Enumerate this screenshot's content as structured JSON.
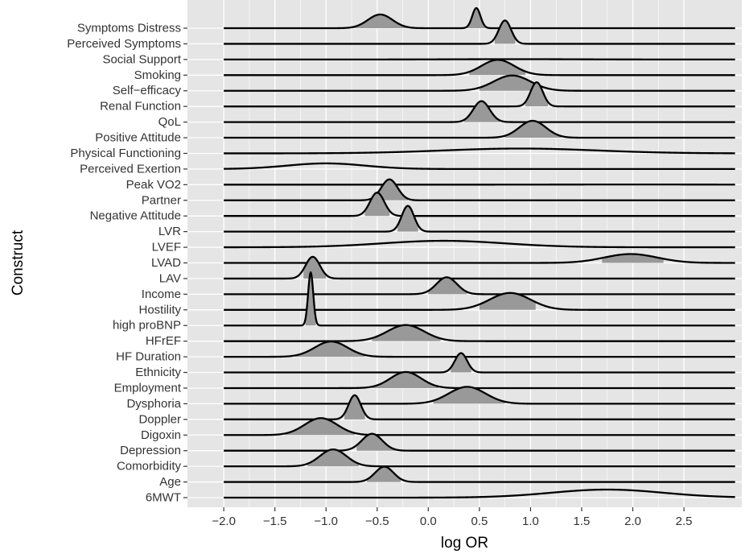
{
  "chart_data": {
    "type": "ridgeline",
    "xlabel": "log OR",
    "ylabel": "Construct",
    "xlim": [
      -2.3,
      3.05
    ],
    "x_ticks": [
      -2.0,
      -1.5,
      -1.0,
      -0.5,
      0.0,
      0.5,
      1.0,
      1.5,
      2.0,
      2.5
    ],
    "x_tick_labels": [
      "−2.0",
      "−1.5",
      "−1.0",
      "−0.5",
      "0.0",
      "0.5",
      "1.0",
      "1.5",
      "2.0",
      "2.5"
    ],
    "x_range": [
      -2.0,
      3.0
    ],
    "grid": true,
    "colors": {
      "panel": "#e5e5e5",
      "grid": "#ffffff",
      "fill": "#999999",
      "line": "#000000"
    },
    "categories": [
      "6MWT",
      "Age",
      "Comorbidity",
      "Depression",
      "Digoxin",
      "Doppler",
      "Dysphoria",
      "Employment",
      "Ethnicity",
      "HF Duration",
      "HFrEF",
      "high proBNP",
      "Hostility",
      "Income",
      "LAV",
      "LVAD",
      "LVEF",
      "LVR",
      "Negative Attitude",
      "Partner",
      "Peak VO2",
      "Perceived Exertion",
      "Physical Functioning",
      "Positive Attitude",
      "QoL",
      "Renal Function",
      "Self−efficacy",
      "Smoking",
      "Social Support",
      "Perceived Symptoms",
      "Symptoms Distress"
    ],
    "series": [
      {
        "name": "6MWT",
        "peaks": [
          {
            "mean": 1.75,
            "sd": 0.55,
            "height": 0.5,
            "fill_range": [
              1.75,
              1.75
            ]
          }
        ]
      },
      {
        "name": "Age",
        "peaks": [
          {
            "mean": -0.43,
            "sd": 0.09,
            "height": 0.95,
            "fill_range": [
              -0.6,
              -0.27
            ]
          }
        ]
      },
      {
        "name": "Comorbidity",
        "peaks": [
          {
            "mean": -0.93,
            "sd": 0.13,
            "height": 1.05,
            "fill_range": [
              -1.18,
              -0.68
            ]
          }
        ]
      },
      {
        "name": "Depression",
        "peaks": [
          {
            "mean": -0.55,
            "sd": 0.1,
            "height": 1.05,
            "fill_range": [
              -0.7,
              -0.3
            ]
          }
        ]
      },
      {
        "name": "Digoxin",
        "peaks": [
          {
            "mean": -1.05,
            "sd": 0.16,
            "height": 1.05,
            "fill_range": [
              -1.4,
              -0.72
            ]
          }
        ]
      },
      {
        "name": "Doppler",
        "peaks": [
          {
            "mean": -0.72,
            "sd": 0.06,
            "height": 1.5,
            "fill_range": [
              -0.82,
              -0.62
            ]
          }
        ]
      },
      {
        "name": "Dysphoria",
        "peaks": [
          {
            "mean": 0.38,
            "sd": 0.18,
            "height": 1.05,
            "fill_range": [
              0.05,
              0.75
            ]
          }
        ]
      },
      {
        "name": "Employment",
        "peaks": [
          {
            "mean": -0.22,
            "sd": 0.15,
            "height": 1.0,
            "fill_range": [
              -0.55,
              0.1
            ]
          }
        ]
      },
      {
        "name": "Ethnicity",
        "peaks": [
          {
            "mean": 0.32,
            "sd": 0.06,
            "height": 1.2,
            "fill_range": [
              0.22,
              0.42
            ]
          }
        ]
      },
      {
        "name": "HF Duration",
        "peaks": [
          {
            "mean": -0.95,
            "sd": 0.16,
            "height": 0.95,
            "fill_range": [
              -1.3,
              -0.62
            ]
          }
        ]
      },
      {
        "name": "HFrEF",
        "peaks": [
          {
            "mean": -0.22,
            "sd": 0.18,
            "height": 1.0,
            "fill_range": [
              -0.55,
              0.12
            ]
          }
        ]
      },
      {
        "name": "high proBNP",
        "peaks": [
          {
            "mean": -1.15,
            "sd": 0.025,
            "height": 3.3,
            "fill_range": [
              -1.2,
              -1.1
            ]
          }
        ]
      },
      {
        "name": "Hostility",
        "peaks": [
          {
            "mean": 0.8,
            "sd": 0.2,
            "height": 1.05,
            "fill_range": [
              0.5,
              1.05
            ]
          }
        ]
      },
      {
        "name": "Income",
        "peaks": [
          {
            "mean": 0.18,
            "sd": 0.1,
            "height": 1.05,
            "fill_range": [
              0.0,
              0.38
            ]
          }
        ]
      },
      {
        "name": "LAV",
        "peaks": [
          {
            "mean": -1.13,
            "sd": 0.07,
            "height": 1.35,
            "fill_range": [
              -1.22,
              -1.0
            ]
          }
        ]
      },
      {
        "name": "LVAD",
        "peaks": [
          {
            "mean": 1.98,
            "sd": 0.26,
            "height": 0.55,
            "fill_range": [
              1.7,
              2.3
            ]
          }
        ]
      },
      {
        "name": "LVEF",
        "peaks": [
          {
            "mean": 0.15,
            "sd": 0.6,
            "height": 0.4,
            "fill_range": [
              0.15,
              0.15
            ]
          }
        ]
      },
      {
        "name": "LVR",
        "peaks": [
          {
            "mean": -0.2,
            "sd": 0.06,
            "height": 1.6,
            "fill_range": [
              -0.3,
              -0.1
            ]
          }
        ]
      },
      {
        "name": "Negative Attitude",
        "peaks": [
          {
            "mean": -0.5,
            "sd": 0.07,
            "height": 1.45,
            "fill_range": [
              -0.62,
              -0.38
            ]
          }
        ]
      },
      {
        "name": "Partner",
        "peaks": [
          {
            "mean": -0.38,
            "sd": 0.08,
            "height": 1.3,
            "fill_range": [
              -0.5,
              -0.2
            ]
          }
        ]
      },
      {
        "name": "Peak VO2",
        "peaks": [
          {
            "mean": 2.0,
            "sd": 0.8,
            "height": 0.01,
            "fill_range": [
              2.0,
              2.0
            ]
          }
        ]
      },
      {
        "name": "Perceived Exertion",
        "peaks": [
          {
            "mean": -1.0,
            "sd": 0.38,
            "height": 0.35,
            "fill_range": [
              -1.0,
              -1.0
            ]
          }
        ]
      },
      {
        "name": "Physical Functioning",
        "peaks": [
          {
            "mean": 0.9,
            "sd": 0.75,
            "height": 0.3,
            "fill_range": [
              0.9,
              0.9
            ]
          }
        ]
      },
      {
        "name": "Positive Attitude",
        "peaks": [
          {
            "mean": 1.02,
            "sd": 0.13,
            "height": 1.05,
            "fill_range": [
              0.75,
              1.3
            ]
          }
        ]
      },
      {
        "name": "QoL",
        "peaks": [
          {
            "mean": 0.52,
            "sd": 0.08,
            "height": 1.3,
            "fill_range": [
              0.35,
              0.7
            ]
          }
        ]
      },
      {
        "name": "Renal Function",
        "peaks": [
          {
            "mean": 1.06,
            "sd": 0.06,
            "height": 1.5,
            "fill_range": [
              0.95,
              1.17
            ]
          }
        ]
      },
      {
        "name": "Self−efficacy",
        "peaks": [
          {
            "mean": 0.82,
            "sd": 0.18,
            "height": 0.95,
            "fill_range": [
              0.5,
              1.1
            ]
          }
        ]
      },
      {
        "name": "Smoking",
        "peaks": [
          {
            "mean": 0.68,
            "sd": 0.16,
            "height": 0.95,
            "fill_range": [
              0.4,
              0.95
            ]
          }
        ]
      },
      {
        "name": "Social Support",
        "peaks": [
          {
            "mean": 0.85,
            "sd": 0.55,
            "height": 0.02,
            "fill_range": [
              0.85,
              0.85
            ]
          }
        ]
      },
      {
        "name": "Perceived Symptoms",
        "peaks": [
          {
            "mean": 0.75,
            "sd": 0.06,
            "height": 1.45,
            "fill_range": [
              0.65,
              0.85
            ]
          }
        ]
      },
      {
        "name": "Symptoms Distress",
        "peaks": [
          {
            "mean": -0.47,
            "sd": 0.12,
            "height": 0.85,
            "fill_range": [
              -0.75,
              -0.2
            ]
          },
          {
            "mean": 0.47,
            "sd": 0.04,
            "height": 1.25,
            "fill_range": [
              0.38,
              0.56
            ]
          }
        ]
      }
    ]
  }
}
